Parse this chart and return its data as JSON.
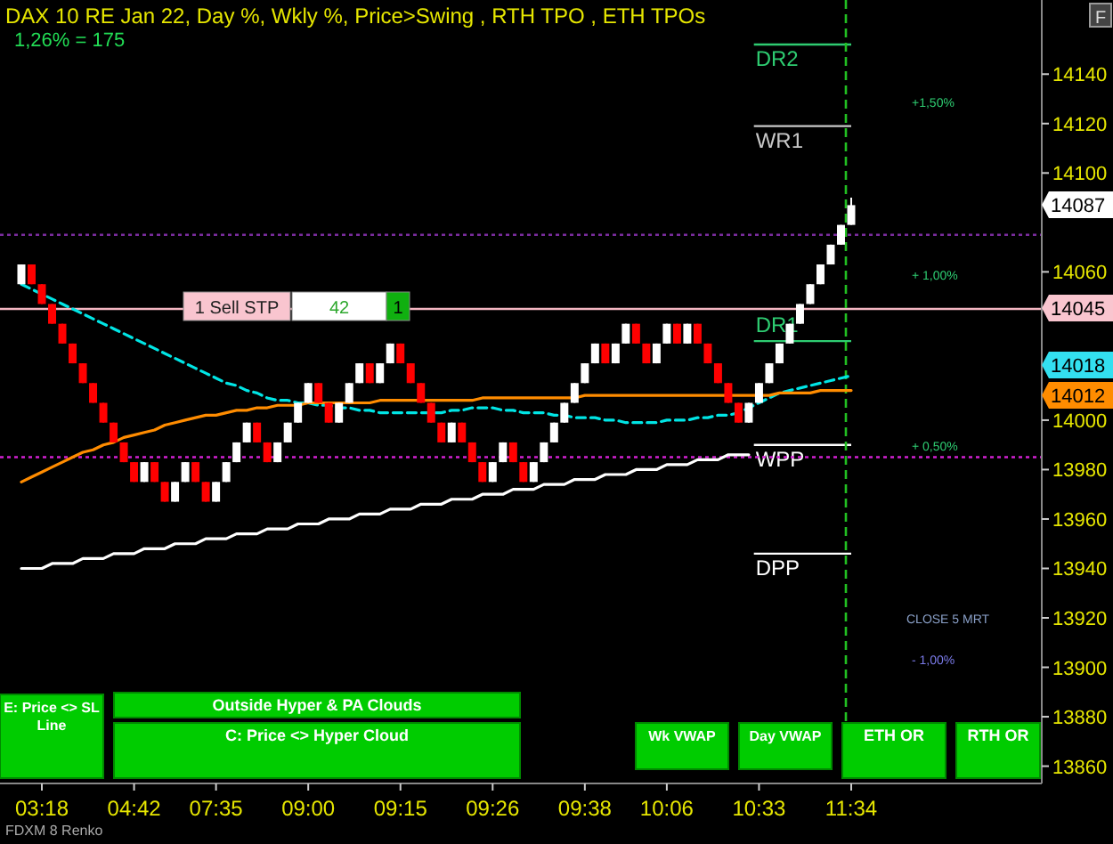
{
  "chart_data": {
    "type": "candlestick",
    "title": "DAX 10 RE Jan 22, Day %, Wkly %, Price>Swing  , RTH TPO , ETH TPOs",
    "subtitle": "1,26% = 175",
    "categories": [
      null,
      null,
      "03:18",
      null,
      null,
      null,
      null,
      null,
      null,
      null,
      null,
      "04:42",
      null,
      null,
      null,
      null,
      null,
      null,
      null,
      "07:35",
      null,
      null,
      null,
      null,
      null,
      null,
      null,
      null,
      "09:00",
      null,
      null,
      null,
      null,
      null,
      null,
      null,
      null,
      "09:15",
      null,
      null,
      null,
      null,
      null,
      null,
      null,
      null,
      "09:26",
      null,
      null,
      null,
      null,
      null,
      null,
      null,
      null,
      "09:38",
      null,
      null,
      null,
      null,
      null,
      null,
      null,
      "10:06",
      null,
      null,
      null,
      null,
      null,
      null,
      null,
      null,
      "10:33",
      null,
      null,
      null,
      null,
      null,
      null,
      null,
      null,
      "11:34"
    ],
    "ohlc": [
      [
        14055,
        14063,
        14055,
        14063
      ],
      [
        14063,
        14063,
        14055,
        14055
      ],
      [
        14055,
        14055,
        14047,
        14047
      ],
      [
        14047,
        14047,
        14039,
        14039
      ],
      [
        14039,
        14039,
        14031,
        14031
      ],
      [
        14031,
        14031,
        14023,
        14023
      ],
      [
        14023,
        14023,
        14015,
        14015
      ],
      [
        14015,
        14015,
        14007,
        14007
      ],
      [
        14007,
        14007,
        13999,
        13999
      ],
      [
        13999,
        13999,
        13991,
        13991
      ],
      [
        13991,
        13991,
        13983,
        13983
      ],
      [
        13983,
        13983,
        13975,
        13975
      ],
      [
        13975,
        13983,
        13975,
        13983
      ],
      [
        13983,
        13983,
        13975,
        13975
      ],
      [
        13975,
        13975,
        13967,
        13967
      ],
      [
        13967,
        13975,
        13967,
        13975
      ],
      [
        13975,
        13983,
        13975,
        13983
      ],
      [
        13983,
        13983,
        13975,
        13975
      ],
      [
        13975,
        13975,
        13967,
        13967
      ],
      [
        13967,
        13975,
        13967,
        13975
      ],
      [
        13975,
        13983,
        13975,
        13983
      ],
      [
        13983,
        13991,
        13983,
        13991
      ],
      [
        13991,
        13999,
        13991,
        13999
      ],
      [
        13999,
        13999,
        13991,
        13991
      ],
      [
        13991,
        13991,
        13983,
        13983
      ],
      [
        13983,
        13991,
        13983,
        13991
      ],
      [
        13991,
        13999,
        13991,
        13999
      ],
      [
        13999,
        14007,
        13999,
        14007
      ],
      [
        14007,
        14015,
        14007,
        14015
      ],
      [
        14015,
        14015,
        14007,
        14007
      ],
      [
        14007,
        14007,
        13999,
        13999
      ],
      [
        13999,
        14007,
        13999,
        14007
      ],
      [
        14007,
        14015,
        14007,
        14015
      ],
      [
        14015,
        14023,
        14015,
        14023
      ],
      [
        14023,
        14023,
        14015,
        14015
      ],
      [
        14015,
        14023,
        14015,
        14023
      ],
      [
        14023,
        14031,
        14023,
        14031
      ],
      [
        14031,
        14031,
        14023,
        14023
      ],
      [
        14023,
        14023,
        14015,
        14015
      ],
      [
        14015,
        14015,
        14007,
        14007
      ],
      [
        14007,
        14007,
        13999,
        13999
      ],
      [
        13999,
        13999,
        13991,
        13991
      ],
      [
        13991,
        13999,
        13991,
        13999
      ],
      [
        13999,
        13999,
        13991,
        13991
      ],
      [
        13991,
        13991,
        13983,
        13983
      ],
      [
        13983,
        13983,
        13975,
        13975
      ],
      [
        13975,
        13983,
        13975,
        13983
      ],
      [
        13983,
        13991,
        13983,
        13991
      ],
      [
        13991,
        13991,
        13983,
        13983
      ],
      [
        13983,
        13983,
        13975,
        13975
      ],
      [
        13975,
        13983,
        13975,
        13983
      ],
      [
        13983,
        13991,
        13983,
        13991
      ],
      [
        13991,
        13999,
        13991,
        13999
      ],
      [
        13999,
        14007,
        13999,
        14007
      ],
      [
        14007,
        14015,
        14007,
        14015
      ],
      [
        14015,
        14023,
        14015,
        14023
      ],
      [
        14023,
        14031,
        14023,
        14031
      ],
      [
        14031,
        14031,
        14023,
        14023
      ],
      [
        14023,
        14031,
        14023,
        14031
      ],
      [
        14031,
        14039,
        14031,
        14039
      ],
      [
        14039,
        14039,
        14031,
        14031
      ],
      [
        14031,
        14031,
        14023,
        14023
      ],
      [
        14023,
        14031,
        14023,
        14031
      ],
      [
        14031,
        14039,
        14031,
        14039
      ],
      [
        14039,
        14039,
        14031,
        14031
      ],
      [
        14031,
        14039,
        14031,
        14039
      ],
      [
        14039,
        14039,
        14031,
        14031
      ],
      [
        14031,
        14031,
        14023,
        14023
      ],
      [
        14023,
        14023,
        14015,
        14015
      ],
      [
        14015,
        14015,
        14007,
        14007
      ],
      [
        14007,
        14007,
        13999,
        13999
      ],
      [
        13999,
        14007,
        13999,
        14007
      ],
      [
        14007,
        14015,
        14007,
        14015
      ],
      [
        14015,
        14023,
        14015,
        14023
      ],
      [
        14023,
        14031,
        14023,
        14031
      ],
      [
        14031,
        14039,
        14031,
        14039
      ],
      [
        14039,
        14047,
        14039,
        14047
      ],
      [
        14047,
        14055,
        14047,
        14055
      ],
      [
        14055,
        14063,
        14055,
        14063
      ],
      [
        14063,
        14071,
        14063,
        14071
      ],
      [
        14071,
        14079,
        14071,
        14079
      ],
      [
        14079,
        14090,
        14079,
        14087
      ]
    ],
    "colors": [
      "#ffffff",
      "#ff0000",
      "#ff0000",
      "#ff0000",
      "#ff0000",
      "#ff0000",
      "#ff0000",
      "#ff0000",
      "#ff0000",
      "#ff0000",
      "#ff0000",
      "#ff0000",
      "#ffffff",
      "#ff0000",
      "#ff0000",
      "#ffffff",
      "#ffffff",
      "#ff0000",
      "#ff0000",
      "#ffffff",
      "#ffffff",
      "#ffffff",
      "#ffffff",
      "#ff0000",
      "#ff0000",
      "#ffffff",
      "#ffffff",
      "#ffffff",
      "#ffffff",
      "#ff0000",
      "#ff0000",
      "#ffffff",
      "#ffffff",
      "#ffffff",
      "#ff0000",
      "#ffffff",
      "#ffffff",
      "#ff0000",
      "#ff0000",
      "#ff0000",
      "#ff0000",
      "#ff0000",
      "#ffffff",
      "#ff0000",
      "#ff0000",
      "#ff0000",
      "#ffffff",
      "#ffffff",
      "#ff0000",
      "#ff0000",
      "#ffffff",
      "#ffffff",
      "#ffffff",
      "#ffffff",
      "#ffffff",
      "#ffffff",
      "#ffffff",
      "#ff0000",
      "#ffffff",
      "#ffffff",
      "#ff0000",
      "#ff0000",
      "#ffffff",
      "#ffffff",
      "#ff0000",
      "#ffffff",
      "#ff0000",
      "#ff0000",
      "#ff0000",
      "#ff0000",
      "#ff0000",
      "#ffffff",
      "#ffffff",
      "#ffffff",
      "#ffffff",
      "#ffffff",
      "#ffffff",
      "#ffffff",
      "#ffffff",
      "#ffffff",
      "#ffffff",
      "#ffffff"
    ],
    "series": [
      {
        "type": "line",
        "color": "#00e5e5",
        "line_style": "dashed",
        "values": [
          14055,
          14053,
          14051,
          14049,
          14047,
          14045,
          14043,
          14041,
          14039,
          14037,
          14035,
          14033,
          14031,
          14029,
          14027,
          14025,
          14023,
          14021,
          14019,
          14017,
          14015,
          14014,
          14012,
          14011,
          14009,
          14008,
          14008,
          14007,
          14007,
          14006,
          14006,
          14005,
          14005,
          14004,
          14004,
          14003,
          14003,
          14003,
          14003,
          14003,
          14003,
          14003,
          14004,
          14004,
          14005,
          14005,
          14005,
          14004,
          14004,
          14003,
          14003,
          14003,
          14002,
          14002,
          14001,
          14001,
          14001,
          14000,
          14000,
          13999,
          13999,
          13999,
          13999,
          14000,
          14000,
          14000,
          14001,
          14001,
          14002,
          14002,
          14003,
          14005,
          14007,
          14009,
          14011,
          14012,
          14013,
          14014,
          14015,
          14016,
          14017,
          14018
        ]
      },
      {
        "type": "line",
        "color": "#ff8c00",
        "line_style": "solid",
        "values": [
          13975,
          13977,
          13979,
          13981,
          13983,
          13985,
          13987,
          13988,
          13990,
          13991,
          13993,
          13994,
          13995,
          13996,
          13998,
          13999,
          14000,
          14001,
          14002,
          14002,
          14003,
          14004,
          14004,
          14005,
          14005,
          14006,
          14006,
          14006,
          14007,
          14007,
          14007,
          14007,
          14007,
          14007,
          14007,
          14008,
          14008,
          14008,
          14008,
          14008,
          14008,
          14008,
          14008,
          14008,
          14008,
          14009,
          14009,
          14009,
          14009,
          14009,
          14009,
          14009,
          14009,
          14009,
          14009,
          14010,
          14010,
          14010,
          14010,
          14010,
          14010,
          14010,
          14010,
          14010,
          14010,
          14010,
          14010,
          14010,
          14010,
          14010,
          14010,
          14010,
          14010,
          14010,
          14011,
          14011,
          14011,
          14011,
          14012,
          14012,
          14012,
          14012
        ]
      },
      {
        "type": "line",
        "color": "#ffffff",
        "line_style": "solid",
        "values": [
          13940,
          13940,
          13940,
          13942,
          13942,
          13942,
          13944,
          13944,
          13944,
          13946,
          13946,
          13946,
          13948,
          13948,
          13948,
          13950,
          13950,
          13950,
          13952,
          13952,
          13952,
          13954,
          13954,
          13954,
          13956,
          13956,
          13956,
          13958,
          13958,
          13958,
          13960,
          13960,
          13960,
          13962,
          13962,
          13962,
          13964,
          13964,
          13964,
          13966,
          13966,
          13966,
          13968,
          13968,
          13968,
          13970,
          13970,
          13970,
          13972,
          13972,
          13972,
          13974,
          13974,
          13974,
          13976,
          13976,
          13976,
          13978,
          13978,
          13978,
          13980,
          13980,
          13980,
          13982,
          13982,
          13982,
          13984,
          13984,
          13984,
          13986,
          13986,
          13986,
          null,
          null,
          null,
          null,
          null,
          null,
          null,
          null,
          null,
          null
        ]
      }
    ],
    "ylim": [
      13853,
      14170
    ],
    "yticks": [
      13860,
      13880,
      13900,
      13920,
      13940,
      13960,
      13980,
      14000,
      14060,
      14100,
      14120,
      14140
    ],
    "ref_lines": [
      {
        "axis": "y",
        "value": 14152,
        "label": "DR2",
        "color": "#2ecc71"
      },
      {
        "axis": "y",
        "value": 14119,
        "label": "WR1",
        "color": "#c8c8c8"
      },
      {
        "axis": "y",
        "value": 14032,
        "label": "DR1",
        "color": "#2ecc71"
      },
      {
        "axis": "y",
        "value": 13990,
        "label": "WPP",
        "color": "#ffffff"
      },
      {
        "axis": "y",
        "value": 13946,
        "label": "DPP",
        "color": "#ffffff"
      },
      {
        "axis": "y",
        "value": 14075,
        "color": "#7a2c9e",
        "line_style": "dotted"
      },
      {
        "axis": "y",
        "value": 13985,
        "color": "#d020d0",
        "line_style": "dotted"
      },
      {
        "axis": "y",
        "value": 14045,
        "color": "#f4b6c2",
        "line_style": "solid"
      },
      {
        "axis": "x",
        "value": "11:34",
        "color": "#22c022",
        "line_style": "dashed"
      }
    ],
    "annotations": [
      "FDXM 8 Renko",
      "E: Price <> SL Line",
      "Outside Hyper & PA Clouds",
      "C: Price <> Hyper Cloud",
      "Wk VWAP",
      "Day VWAP",
      "ETH OR",
      "RTH OR",
      "F",
      "1 Sell STP",
      "42",
      "1",
      "+1,50%",
      "+ 1,00%",
      "+ 0,50%",
      "CLOSE 5 MRT",
      "- 1,00%",
      "14087",
      "14045",
      "14018",
      "14012"
    ]
  }
}
